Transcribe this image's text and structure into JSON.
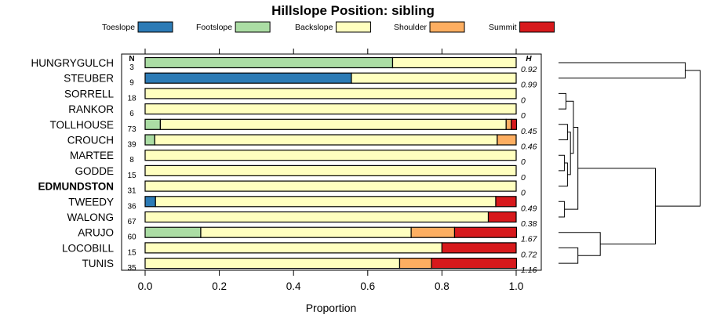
{
  "chart_data": {
    "type": "bar",
    "orientation": "horizontal",
    "stacked": true,
    "title": "Hillslope Position: sibling",
    "xlabel": "Proportion",
    "ylabel": "",
    "xlim": [
      0,
      1
    ],
    "x_ticks": [
      0.0,
      0.2,
      0.4,
      0.6,
      0.8,
      1.0
    ],
    "x_tick_labels": [
      "0.0",
      "0.2",
      "0.4",
      "0.6",
      "0.8",
      "1.0"
    ],
    "legend_position": "top",
    "n_header": "N",
    "h_header": "H",
    "categories": [
      "HUNGRYGULCH",
      "STEUBER",
      "SORRELL",
      "RANKOR",
      "TOLLHOUSE",
      "CROUCH",
      "MARTEE",
      "GODDE",
      "EDMUNDSTON",
      "TWEEDY",
      "WALONG",
      "ARUJO",
      "LOCOBILL",
      "TUNIS"
    ],
    "highlighted_category": "EDMUNDSTON",
    "n_values": [
      "3",
      "9",
      "18",
      "6",
      "73",
      "39",
      "8",
      "15",
      "31",
      "36",
      "67",
      "60",
      "15",
      "35"
    ],
    "h_values": [
      "0.92",
      "0.99",
      "0",
      "0",
      "0.45",
      "0.46",
      "0",
      "0",
      "0",
      "0.49",
      "0.38",
      "1.67",
      "0.72",
      "1.16"
    ],
    "series": [
      {
        "name": "Toeslope",
        "color": "#2c7bb6",
        "values": [
          0,
          0.556,
          0,
          0,
          0,
          0,
          0,
          0,
          0,
          0.028,
          0,
          0,
          0,
          0
        ]
      },
      {
        "name": "Footslope",
        "color": "#abdda4",
        "values": [
          0.667,
          0,
          0,
          0,
          0.041,
          0.026,
          0,
          0,
          0,
          0,
          0,
          0.15,
          0,
          0
        ]
      },
      {
        "name": "Backslope",
        "color": "#ffffbf",
        "values": [
          0.333,
          0.444,
          1.0,
          1.0,
          0.932,
          0.923,
          1.0,
          1.0,
          1.0,
          0.917,
          0.925,
          0.567,
          0.8,
          0.686
        ]
      },
      {
        "name": "Shoulder",
        "color": "#fdae61",
        "values": [
          0,
          0,
          0,
          0,
          0.014,
          0.051,
          0,
          0,
          0,
          0,
          0,
          0.117,
          0,
          0.086
        ]
      },
      {
        "name": "Summit",
        "color": "#d7191c",
        "values": [
          0,
          0,
          0,
          0,
          0.014,
          0,
          0,
          0,
          0,
          0.055,
          0.075,
          0.167,
          0.2,
          0.229
        ]
      }
    ],
    "dendrogram": {
      "description": "hierarchical clustering of categories (node heights in relative units)",
      "nodes": {
        "n1": {
          "left": "TOLLHOUSE",
          "right": "CROUCH",
          "height": 0.06
        },
        "n2": {
          "left": "MARTEE",
          "right": "GODDE",
          "height": 0.04
        },
        "n3": {
          "left": "n2",
          "right": "EDMUNDSTON",
          "height": 0.06
        },
        "n4": {
          "left": "n1",
          "right": "n3",
          "height": 0.08
        },
        "n5": {
          "left": "SORRELL",
          "right": "RANKOR",
          "height": 0.05
        },
        "n6": {
          "left": "n5",
          "right": "n4",
          "height": 0.1
        },
        "n7": {
          "left": "TWEEDY",
          "right": "WALONG",
          "height": 0.04
        },
        "n8": {
          "left": "n6",
          "right": "n7",
          "height": 0.13
        },
        "n9": {
          "left": "LOCOBILL",
          "right": "TUNIS",
          "height": 0.13
        },
        "n10": {
          "left": "ARUJO",
          "right": "n9",
          "height": 0.28
        },
        "n11": {
          "left": "n8",
          "right": "n10",
          "height": 0.65
        },
        "n12": {
          "left": "HUNGRYGULCH",
          "right": "STEUBER",
          "height": 0.85
        },
        "root": {
          "left": "n12",
          "right": "n11",
          "height": 0.95
        }
      }
    }
  }
}
